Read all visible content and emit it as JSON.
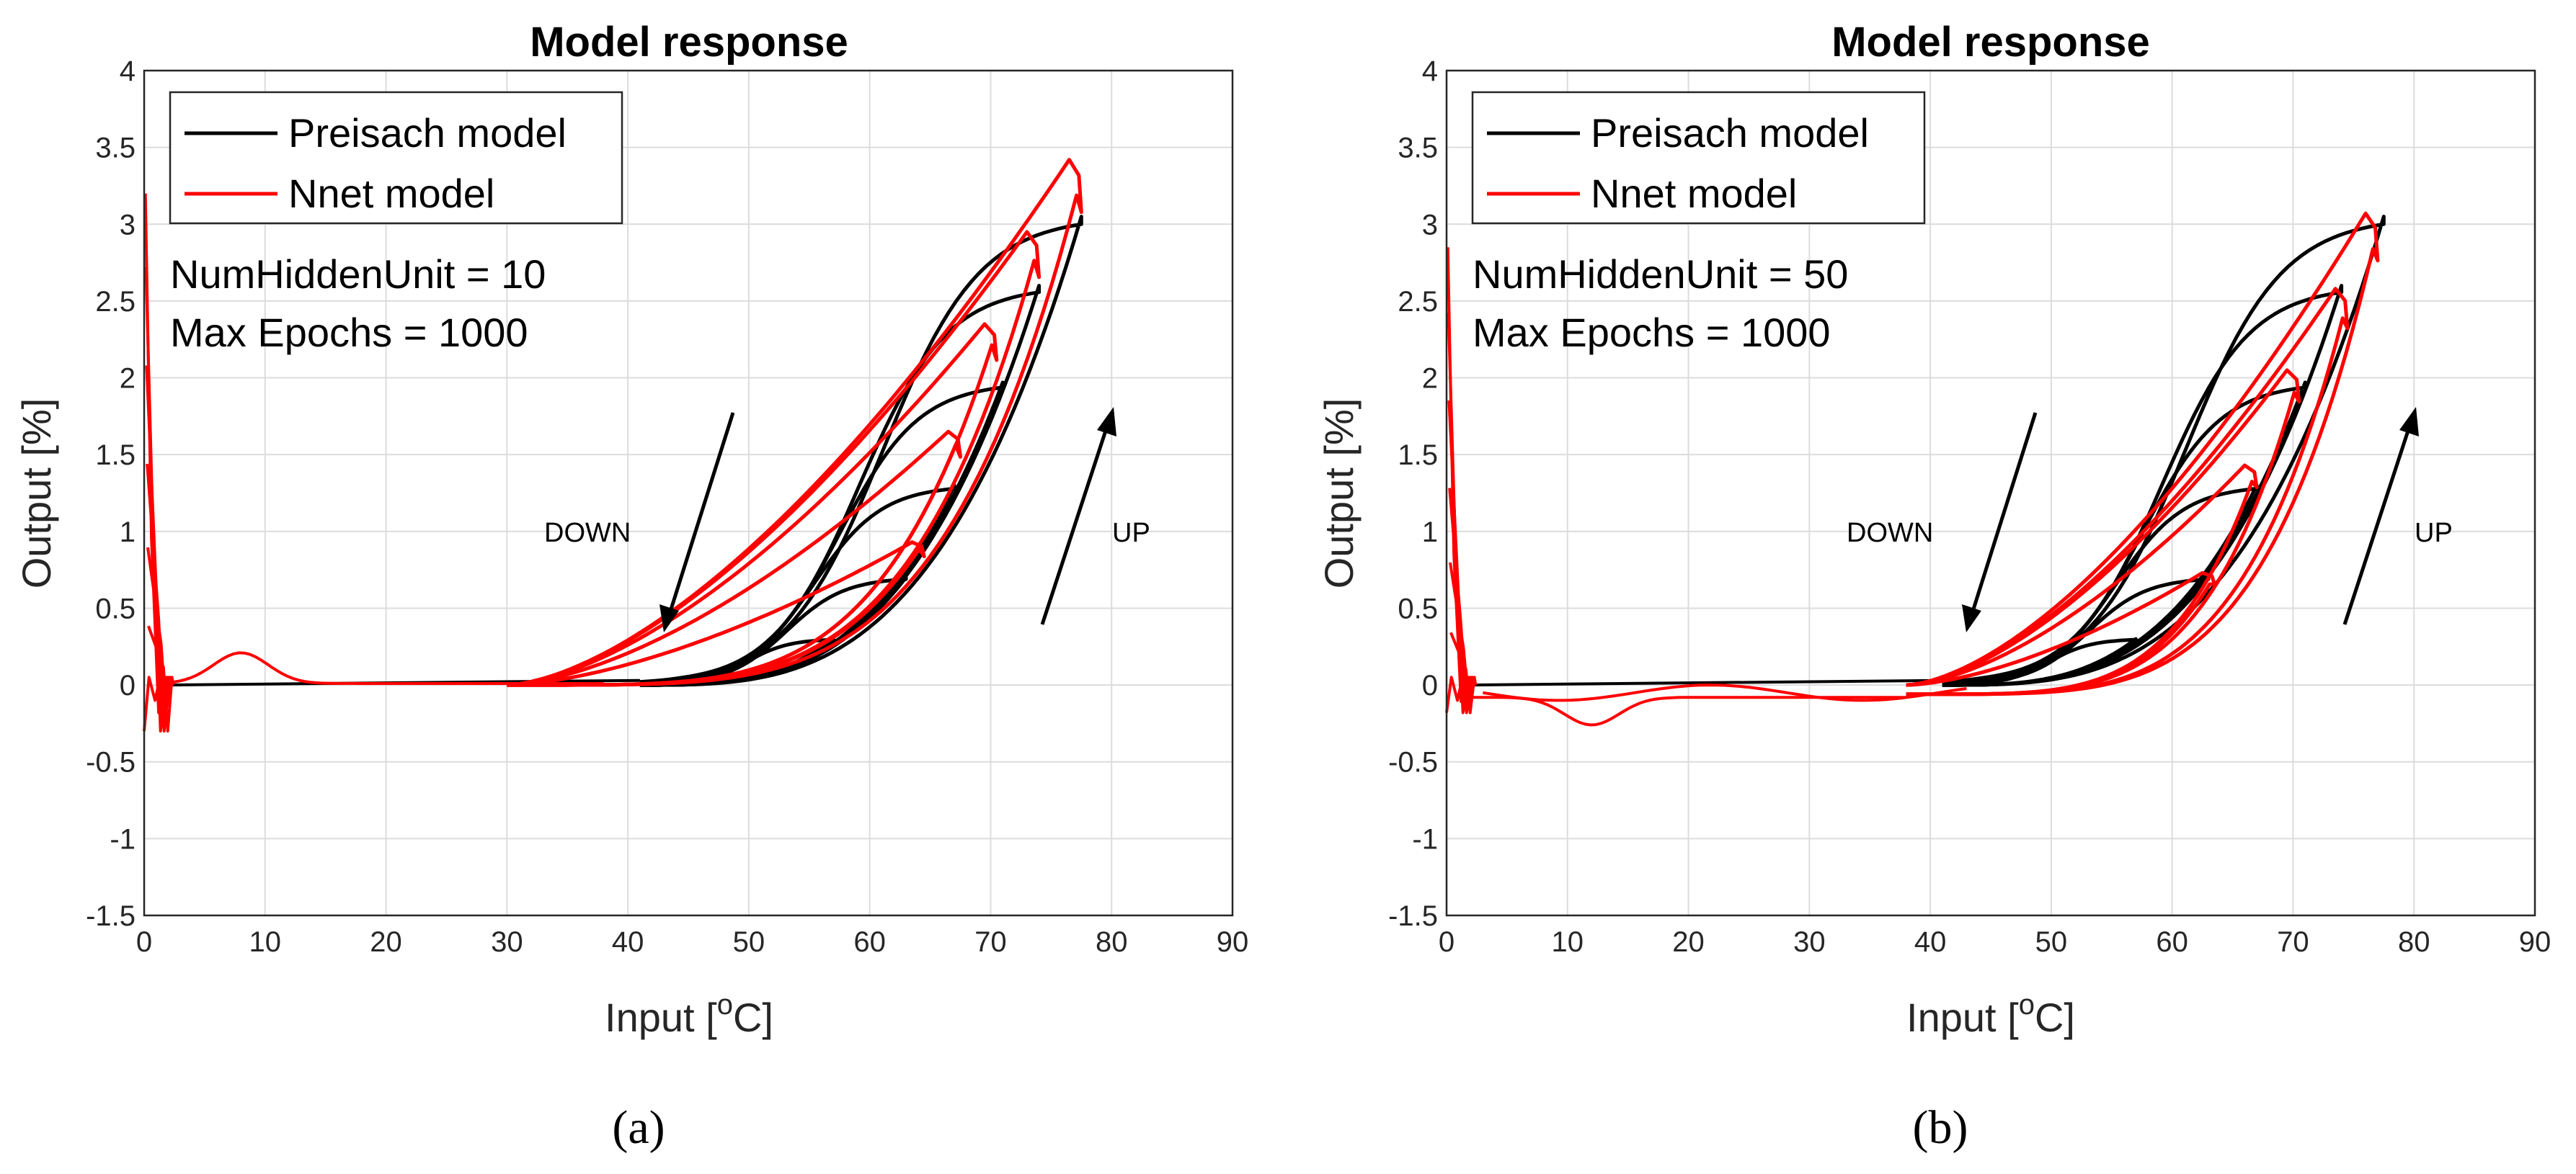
{
  "chart_data": [
    {
      "type": "line",
      "panel": "a",
      "title": "Model response",
      "xlabel": "Input [",
      "xlabel_sup": "o",
      "xlabel_unit": "C]",
      "ylabel": "Output [%]",
      "xlim": [
        0,
        90
      ],
      "ylim": [
        -1.5,
        4
      ],
      "xticks": [
        0,
        10,
        20,
        30,
        40,
        50,
        60,
        70,
        80,
        90
      ],
      "yticks": [
        "4",
        "3.5",
        "3",
        "2.5",
        "2",
        "1.5",
        "1",
        "0.5",
        "0",
        "-0.5",
        "-1",
        "-1.5"
      ],
      "grid": true,
      "legend": {
        "placement": "top-left",
        "entries": [
          "Preisach model",
          "Nnet model"
        ]
      },
      "annotations": [
        "NumHiddenUnit = 10",
        "Max Epochs = 1000"
      ],
      "arrow_labels": {
        "down": "DOWN",
        "up": "UP"
      },
      "series": [
        {
          "name": "Preisach model",
          "color": "#000000"
        },
        {
          "name": "Nnet model",
          "color": "#ff0000"
        }
      ],
      "loop_peaks": [
        {
          "x_peak": 63,
          "preisach_plateau": 0.7,
          "nnet_peak": 0.93,
          "nnet_peak_x": 63.5
        },
        {
          "x_peak": 67,
          "preisach_plateau": 1.3,
          "nnet_peak": 1.65,
          "nnet_peak_x": 66.5
        },
        {
          "x_peak": 71,
          "preisach_plateau": 1.97,
          "nnet_peak": 2.35,
          "nnet_peak_x": 69.5
        },
        {
          "x_peak": 74,
          "preisach_plateau": 2.6,
          "nnet_peak": 2.95,
          "nnet_peak_x": 73
        },
        {
          "x_peak": 77.5,
          "preisach_plateau": 3.05,
          "nnet_peak": 3.42,
          "nnet_peak_x": 76.5
        }
      ],
      "small_loop_peak": {
        "x": 57,
        "preisach": 0.3
      },
      "spike_near_zero": {
        "x": 0,
        "max": 3.2,
        "min": -0.3
      },
      "nnet_bump": {
        "x": 8,
        "y": 0.2
      }
    },
    {
      "type": "line",
      "panel": "b",
      "title": "Model response",
      "xlabel": "Input [",
      "xlabel_sup": "o",
      "xlabel_unit": "C]",
      "ylabel": "Output [%]",
      "xlim": [
        0,
        90
      ],
      "ylim": [
        -1.5,
        4
      ],
      "xticks": [
        0,
        10,
        20,
        30,
        40,
        50,
        60,
        70,
        80,
        90
      ],
      "yticks": [
        "4",
        "3.5",
        "3",
        "2.5",
        "2",
        "1.5",
        "1",
        "0.5",
        "0",
        "-0.5",
        "-1",
        "-1.5"
      ],
      "grid": true,
      "legend": {
        "placement": "top-left",
        "entries": [
          "Preisach model",
          "Nnet model"
        ]
      },
      "annotations": [
        "NumHiddenUnit = 50",
        "Max Epochs = 1000"
      ],
      "arrow_labels": {
        "down": "DOWN",
        "up": "UP"
      },
      "series": [
        {
          "name": "Preisach model",
          "color": "#000000"
        },
        {
          "name": "Nnet model",
          "color": "#ff0000"
        }
      ],
      "loop_peaks": [
        {
          "x_peak": 63,
          "preisach_plateau": 0.7,
          "nnet_peak": 0.73,
          "nnet_peak_x": 62.5
        },
        {
          "x_peak": 67,
          "preisach_plateau": 1.3,
          "nnet_peak": 1.43,
          "nnet_peak_x": 66
        },
        {
          "x_peak": 71,
          "preisach_plateau": 1.97,
          "nnet_peak": 2.05,
          "nnet_peak_x": 69.5
        },
        {
          "x_peak": 74,
          "preisach_plateau": 2.6,
          "nnet_peak": 2.58,
          "nnet_peak_x": 73.5
        },
        {
          "x_peak": 77.5,
          "preisach_plateau": 3.05,
          "nnet_peak": 3.07,
          "nnet_peak_x": 76
        }
      ],
      "small_loop_peak": {
        "x": 57,
        "preisach": 0.3
      },
      "spike_near_zero": {
        "x": 0,
        "max": 2.85,
        "min": -0.18
      },
      "nnet_bump": {
        "x": 12,
        "y": -0.18
      }
    }
  ],
  "panel_labels": [
    "(a)",
    "(b)"
  ]
}
